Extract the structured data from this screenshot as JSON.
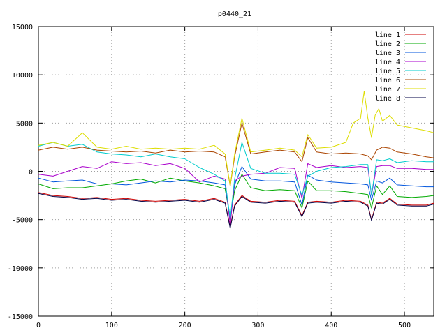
{
  "chart_data": {
    "type": "line",
    "title": "p0440_21",
    "xlabel": "",
    "ylabel": "",
    "xlim": [
      0,
      540
    ],
    "ylim": [
      -15000,
      15000
    ],
    "grid": true,
    "legend_position": "top-right",
    "x_ticks": [
      0,
      100,
      200,
      300,
      400,
      500
    ],
    "y_ticks": [
      -15000,
      -10000,
      -5000,
      0,
      5000,
      10000,
      15000
    ],
    "series": [
      {
        "name": "line 1",
        "color": "#cc0000",
        "points": [
          [
            0,
            -2200
          ],
          [
            20,
            -2500
          ],
          [
            40,
            -2600
          ],
          [
            60,
            -2800
          ],
          [
            80,
            -2700
          ],
          [
            100,
            -2900
          ],
          [
            120,
            -2800
          ],
          [
            140,
            -3000
          ],
          [
            160,
            -3100
          ],
          [
            180,
            -3000
          ],
          [
            200,
            -2900
          ],
          [
            220,
            -3100
          ],
          [
            240,
            -2800
          ],
          [
            255,
            -3200
          ],
          [
            262,
            -5800
          ],
          [
            268,
            -3500
          ],
          [
            278,
            -2500
          ],
          [
            290,
            -3100
          ],
          [
            310,
            -3200
          ],
          [
            330,
            -3000
          ],
          [
            350,
            -3100
          ],
          [
            360,
            -4600
          ],
          [
            368,
            -3200
          ],
          [
            380,
            -3100
          ],
          [
            400,
            -3200
          ],
          [
            420,
            -3000
          ],
          [
            440,
            -3100
          ],
          [
            450,
            -3500
          ],
          [
            455,
            -5000
          ],
          [
            462,
            -3200
          ],
          [
            470,
            -3300
          ],
          [
            480,
            -2800
          ],
          [
            490,
            -3400
          ],
          [
            510,
            -3500
          ],
          [
            530,
            -3500
          ],
          [
            540,
            -3300
          ]
        ]
      },
      {
        "name": "line 2",
        "color": "#00aa00",
        "points": [
          [
            0,
            -1300
          ],
          [
            20,
            -1800
          ],
          [
            40,
            -1700
          ],
          [
            60,
            -1700
          ],
          [
            80,
            -1500
          ],
          [
            100,
            -1300
          ],
          [
            120,
            -1000
          ],
          [
            140,
            -800
          ],
          [
            160,
            -1200
          ],
          [
            180,
            -700
          ],
          [
            200,
            -1000
          ],
          [
            220,
            -1200
          ],
          [
            240,
            -1500
          ],
          [
            255,
            -1800
          ],
          [
            262,
            -4800
          ],
          [
            268,
            -2000
          ],
          [
            278,
            -300
          ],
          [
            290,
            -1700
          ],
          [
            310,
            -2000
          ],
          [
            330,
            -1900
          ],
          [
            350,
            -2000
          ],
          [
            360,
            -3800
          ],
          [
            368,
            -1000
          ],
          [
            380,
            -2000
          ],
          [
            400,
            -2000
          ],
          [
            420,
            -2100
          ],
          [
            440,
            -2300
          ],
          [
            450,
            -2400
          ],
          [
            455,
            -3800
          ],
          [
            462,
            -1500
          ],
          [
            470,
            -2400
          ],
          [
            480,
            -1500
          ],
          [
            490,
            -2600
          ],
          [
            510,
            -2700
          ],
          [
            530,
            -2600
          ],
          [
            540,
            -2500
          ]
        ]
      },
      {
        "name": "line 3",
        "color": "#0055dd",
        "points": [
          [
            0,
            -700
          ],
          [
            20,
            -1100
          ],
          [
            40,
            -1000
          ],
          [
            60,
            -900
          ],
          [
            80,
            -1300
          ],
          [
            100,
            -1300
          ],
          [
            120,
            -1400
          ],
          [
            140,
            -1200
          ],
          [
            160,
            -1000
          ],
          [
            180,
            -1100
          ],
          [
            200,
            -900
          ],
          [
            220,
            -1000
          ],
          [
            240,
            -1200
          ],
          [
            255,
            -1400
          ],
          [
            262,
            -5000
          ],
          [
            268,
            -1400
          ],
          [
            278,
            500
          ],
          [
            290,
            -800
          ],
          [
            310,
            -1000
          ],
          [
            330,
            -1000
          ],
          [
            350,
            -1100
          ],
          [
            360,
            -3500
          ],
          [
            368,
            -400
          ],
          [
            380,
            -900
          ],
          [
            400,
            -1100
          ],
          [
            420,
            -1200
          ],
          [
            440,
            -1300
          ],
          [
            450,
            -1400
          ],
          [
            455,
            -3000
          ],
          [
            462,
            -1000
          ],
          [
            470,
            -1200
          ],
          [
            480,
            -700
          ],
          [
            490,
            -1400
          ],
          [
            510,
            -1500
          ],
          [
            530,
            -1600
          ],
          [
            540,
            -1600
          ]
        ]
      },
      {
        "name": "line 4",
        "color": "#aa00cc",
        "points": [
          [
            0,
            -300
          ],
          [
            20,
            -500
          ],
          [
            40,
            0
          ],
          [
            60,
            500
          ],
          [
            80,
            300
          ],
          [
            100,
            1000
          ],
          [
            120,
            800
          ],
          [
            140,
            900
          ],
          [
            160,
            600
          ],
          [
            180,
            800
          ],
          [
            200,
            300
          ],
          [
            220,
            -1100
          ],
          [
            240,
            -500
          ],
          [
            255,
            -800
          ],
          [
            262,
            -5600
          ],
          [
            268,
            -1000
          ],
          [
            278,
            -500
          ],
          [
            290,
            -300
          ],
          [
            310,
            -200
          ],
          [
            330,
            400
          ],
          [
            350,
            300
          ],
          [
            360,
            -2800
          ],
          [
            368,
            800
          ],
          [
            380,
            400
          ],
          [
            400,
            600
          ],
          [
            420,
            400
          ],
          [
            440,
            500
          ],
          [
            450,
            400
          ],
          [
            455,
            -2500
          ],
          [
            462,
            500
          ],
          [
            470,
            600
          ],
          [
            480,
            600
          ],
          [
            490,
            300
          ],
          [
            510,
            300
          ],
          [
            530,
            200
          ],
          [
            540,
            200
          ]
        ]
      },
      {
        "name": "line 5",
        "color": "#00cccc",
        "points": [
          [
            0,
            2600
          ],
          [
            20,
            3000
          ],
          [
            40,
            2600
          ],
          [
            60,
            2800
          ],
          [
            80,
            2000
          ],
          [
            100,
            1800
          ],
          [
            120,
            1700
          ],
          [
            140,
            1500
          ],
          [
            160,
            1800
          ],
          [
            180,
            1500
          ],
          [
            200,
            1300
          ],
          [
            220,
            400
          ],
          [
            240,
            -300
          ],
          [
            255,
            -1000
          ],
          [
            262,
            -4900
          ],
          [
            268,
            -800
          ],
          [
            278,
            3000
          ],
          [
            290,
            300
          ],
          [
            310,
            -200
          ],
          [
            330,
            -200
          ],
          [
            350,
            -300
          ],
          [
            360,
            -2500
          ],
          [
            368,
            -500
          ],
          [
            380,
            0
          ],
          [
            400,
            400
          ],
          [
            420,
            500
          ],
          [
            440,
            700
          ],
          [
            450,
            700
          ],
          [
            455,
            -2500
          ],
          [
            462,
            1200
          ],
          [
            470,
            1100
          ],
          [
            480,
            1300
          ],
          [
            490,
            900
          ],
          [
            510,
            1100
          ],
          [
            530,
            1000
          ],
          [
            540,
            1000
          ]
        ]
      },
      {
        "name": "line 6",
        "color": "#aa4400",
        "points": [
          [
            0,
            2200
          ],
          [
            20,
            2500
          ],
          [
            40,
            2300
          ],
          [
            60,
            2500
          ],
          [
            80,
            2200
          ],
          [
            100,
            2100
          ],
          [
            120,
            2000
          ],
          [
            140,
            2100
          ],
          [
            160,
            1900
          ],
          [
            180,
            2200
          ],
          [
            200,
            2000
          ],
          [
            220,
            2100
          ],
          [
            240,
            2000
          ],
          [
            255,
            1500
          ],
          [
            262,
            -1500
          ],
          [
            268,
            1500
          ],
          [
            278,
            5000
          ],
          [
            290,
            1800
          ],
          [
            310,
            2000
          ],
          [
            330,
            2200
          ],
          [
            350,
            2000
          ],
          [
            360,
            1000
          ],
          [
            368,
            3500
          ],
          [
            380,
            2000
          ],
          [
            400,
            1800
          ],
          [
            420,
            1900
          ],
          [
            440,
            1800
          ],
          [
            450,
            1600
          ],
          [
            455,
            1200
          ],
          [
            462,
            2200
          ],
          [
            470,
            2500
          ],
          [
            480,
            2400
          ],
          [
            490,
            2000
          ],
          [
            510,
            1800
          ],
          [
            530,
            1500
          ],
          [
            540,
            1400
          ]
        ]
      },
      {
        "name": "line 7",
        "color": "#dddd00",
        "points": [
          [
            0,
            2700
          ],
          [
            20,
            3000
          ],
          [
            40,
            2600
          ],
          [
            60,
            4000
          ],
          [
            80,
            2500
          ],
          [
            100,
            2300
          ],
          [
            120,
            2600
          ],
          [
            140,
            2300
          ],
          [
            160,
            2400
          ],
          [
            180,
            2300
          ],
          [
            200,
            2400
          ],
          [
            220,
            2300
          ],
          [
            240,
            2700
          ],
          [
            255,
            1800
          ],
          [
            262,
            -1500
          ],
          [
            268,
            1800
          ],
          [
            278,
            5500
          ],
          [
            290,
            2000
          ],
          [
            310,
            2200
          ],
          [
            330,
            2400
          ],
          [
            350,
            2200
          ],
          [
            360,
            1500
          ],
          [
            368,
            3800
          ],
          [
            380,
            2400
          ],
          [
            400,
            2500
          ],
          [
            420,
            3000
          ],
          [
            430,
            5000
          ],
          [
            440,
            5500
          ],
          [
            445,
            8300
          ],
          [
            450,
            5500
          ],
          [
            455,
            3500
          ],
          [
            460,
            5800
          ],
          [
            465,
            6500
          ],
          [
            470,
            5200
          ],
          [
            480,
            5800
          ],
          [
            490,
            4800
          ],
          [
            510,
            4500
          ],
          [
            530,
            4200
          ],
          [
            540,
            4000
          ]
        ]
      },
      {
        "name": "line 8",
        "color": "#000044",
        "points": [
          [
            0,
            -2300
          ],
          [
            20,
            -2600
          ],
          [
            40,
            -2700
          ],
          [
            60,
            -2900
          ],
          [
            80,
            -2800
          ],
          [
            100,
            -3000
          ],
          [
            120,
            -2900
          ],
          [
            140,
            -3100
          ],
          [
            160,
            -3200
          ],
          [
            180,
            -3100
          ],
          [
            200,
            -3000
          ],
          [
            220,
            -3200
          ],
          [
            240,
            -2900
          ],
          [
            255,
            -3300
          ],
          [
            262,
            -5900
          ],
          [
            268,
            -3600
          ],
          [
            278,
            -2600
          ],
          [
            290,
            -3200
          ],
          [
            310,
            -3300
          ],
          [
            330,
            -3100
          ],
          [
            350,
            -3200
          ],
          [
            360,
            -4700
          ],
          [
            368,
            -3300
          ],
          [
            380,
            -3200
          ],
          [
            400,
            -3300
          ],
          [
            420,
            -3100
          ],
          [
            440,
            -3200
          ],
          [
            450,
            -3600
          ],
          [
            455,
            -5100
          ],
          [
            462,
            -3300
          ],
          [
            470,
            -3400
          ],
          [
            480,
            -2900
          ],
          [
            490,
            -3500
          ],
          [
            510,
            -3600
          ],
          [
            530,
            -3600
          ],
          [
            540,
            -3400
          ]
        ]
      }
    ]
  }
}
